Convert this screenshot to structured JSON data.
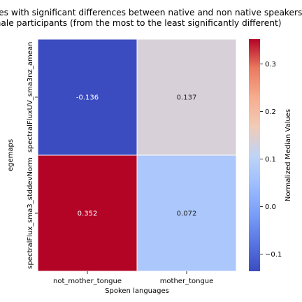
{
  "chart_data": {
    "type": "heatmap",
    "title_lines": [
      "Features with significant differences between native and non native speakers",
      "male participants (from the most to the least significantly different)"
    ],
    "xlabel": "Spoken languages",
    "ylabel": "egemaps",
    "x_categories": [
      "not_mother_tongue",
      "mother_tongue"
    ],
    "y_categories": [
      "spectralFluxUV_sma3nz_amean",
      "spectralFlux_sma3_stddevNorm"
    ],
    "values": [
      [
        -0.136,
        0.137
      ],
      [
        0.352,
        0.072
      ]
    ],
    "value_labels": [
      [
        "-0.136",
        "0.137"
      ],
      [
        "0.352",
        "0.072"
      ]
    ],
    "colorbar": {
      "label": "Normalized Median Values",
      "vmin": -0.136,
      "vmax": 0.352,
      "colormap": "coolwarm",
      "ticks": [
        -0.1,
        0.0,
        0.1,
        0.2,
        0.3
      ],
      "tick_labels": [
        "−0.1",
        "0.0",
        "0.1",
        "0.2",
        "0.3"
      ]
    }
  }
}
